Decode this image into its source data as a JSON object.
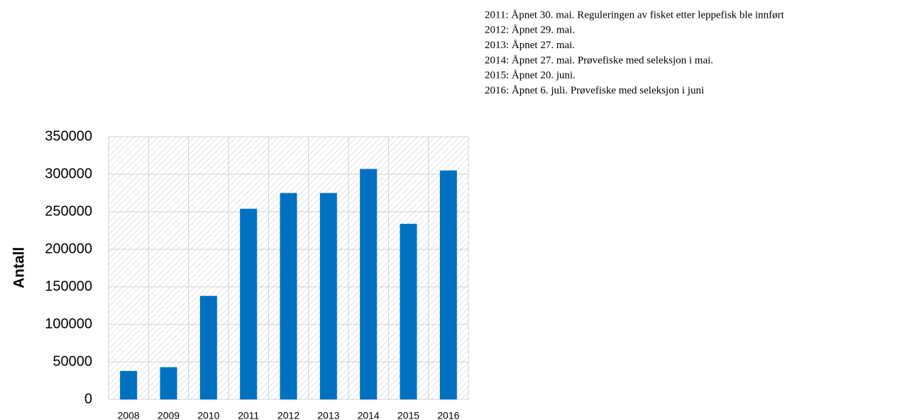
{
  "chart_data": {
    "type": "bar",
    "y_label": "Antall",
    "categories": [
      "2008",
      "2009",
      "2010",
      "2011",
      "2012",
      "2013",
      "2014",
      "2015",
      "2016"
    ],
    "values": [
      38000,
      43000,
      138000,
      254000,
      275000,
      275000,
      307000,
      234000,
      305000
    ],
    "color": "#0070c0",
    "ylim": [
      0,
      350000
    ],
    "yticks": [
      0,
      50000,
      100000,
      150000,
      200000,
      250000,
      300000,
      350000
    ],
    "grid": true,
    "notes": [
      "2011: Åpnet 30. mai. Reguleringen av fisket etter leppefisk ble innført",
      "2012: Åpnet 29. mai.",
      "2013: Åpnet 27. mai.",
      "2014: Åpnet 27. mai. Prøvefiske med seleksjon i mai.",
      "2015: Åpnet 20. juni.",
      "2016: Åpnet 6. juli. Prøvefiske med seleksjon i juni"
    ]
  }
}
